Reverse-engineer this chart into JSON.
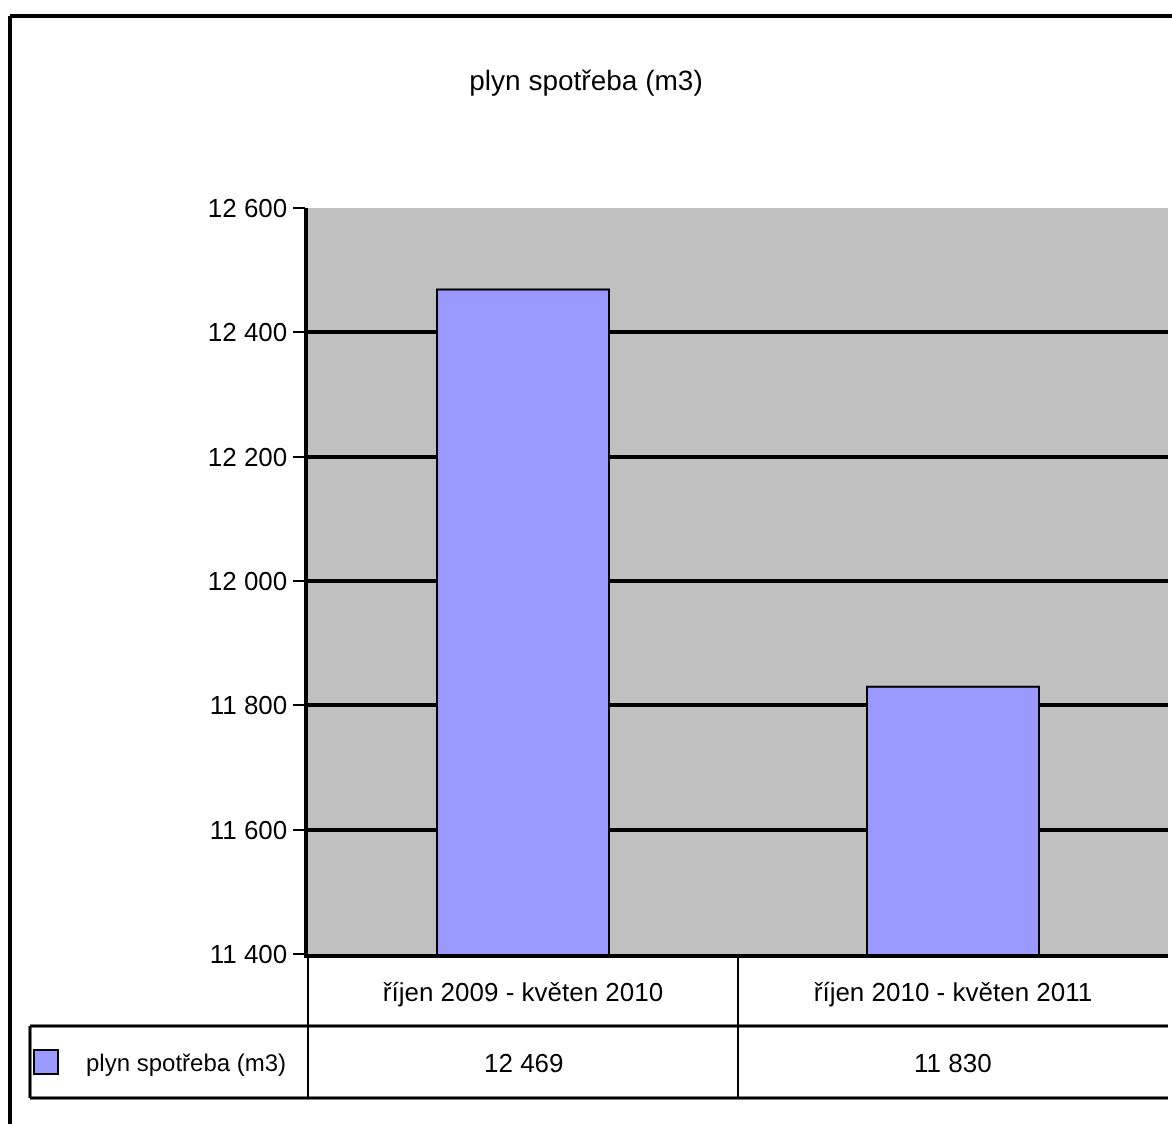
{
  "chart_data": {
    "type": "bar",
    "title": "plyn spotřeba (m3)",
    "categories": [
      "říjen 2009 - květen 2010",
      "říjen 2010 - květen 2011"
    ],
    "series": [
      {
        "name": "plyn spotřeba (m3)",
        "color": "#9999ff",
        "values": [
          12469,
          11830
        ],
        "value_labels": [
          "12 469",
          "11 830"
        ]
      }
    ],
    "ylim": [
      11400,
      12600
    ],
    "yticks": [
      {
        "value": 11400,
        "label": "11 400"
      },
      {
        "value": 11600,
        "label": "11 600"
      },
      {
        "value": 11800,
        "label": "11 800"
      },
      {
        "value": 12000,
        "label": "12 000"
      },
      {
        "value": 12200,
        "label": "12 200"
      },
      {
        "value": 12400,
        "label": "12 400"
      },
      {
        "value": 12600,
        "label": "12 600"
      }
    ],
    "grid": "y",
    "legend": "bottom left"
  }
}
